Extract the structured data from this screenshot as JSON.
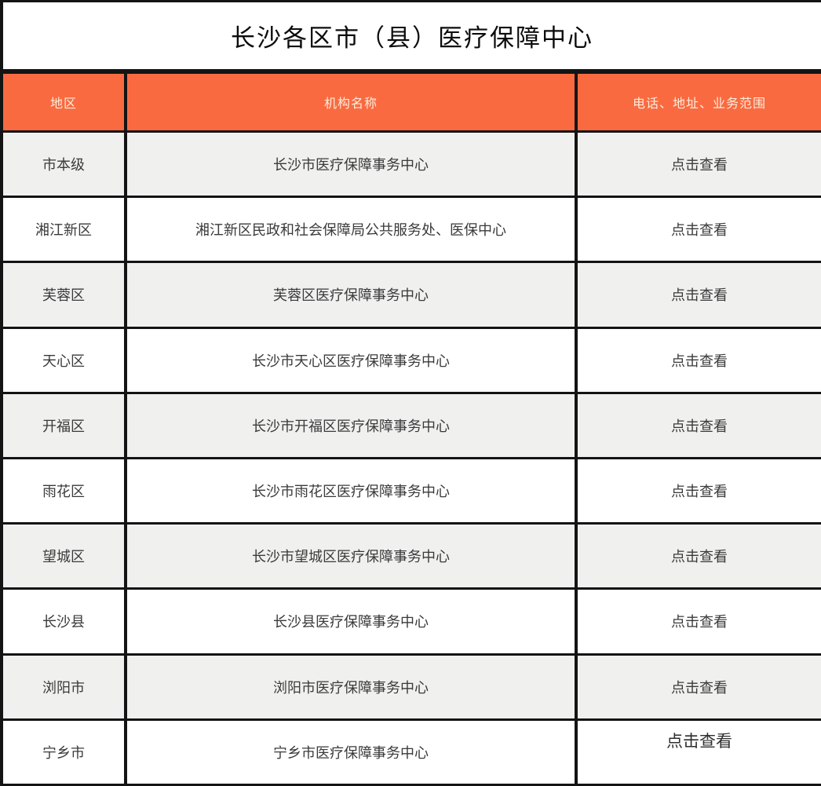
{
  "title": "长沙各区市（县）医疗保障中心",
  "colors": {
    "header_bg": "#FA6A40",
    "header_text": "#FBEDDC",
    "row_alt_bg": "#F0F0EF",
    "row_bg": "#FFFFFF",
    "border": "#141414",
    "body_text": "#3A3A3A"
  },
  "table": {
    "headers": [
      "地区",
      "机构名称",
      "电话、地址、业务范围"
    ],
    "rows": [
      {
        "region": "市本级",
        "org": "长沙市医疗保障事务中心",
        "action": "点击查看"
      },
      {
        "region": "湘江新区",
        "org": "湘江新区民政和社会保障局公共服务处、医保中心",
        "action": "点击查看"
      },
      {
        "region": "芙蓉区",
        "org": "芙蓉区医疗保障事务中心",
        "action": "点击查看"
      },
      {
        "region": "天心区",
        "org": "长沙市天心区医疗保障事务中心",
        "action": "点击查看"
      },
      {
        "region": "开福区",
        "org": "长沙市开福区医疗保障事务中心",
        "action": "点击查看"
      },
      {
        "region": "雨花区",
        "org": "长沙市雨花区医疗保障事务中心",
        "action": "点击查看"
      },
      {
        "region": "望城区",
        "org": "长沙市望城区医疗保障事务中心",
        "action": "点击查看"
      },
      {
        "region": "长沙县",
        "org": "长沙县医疗保障事务中心",
        "action": "点击查看"
      },
      {
        "region": "浏阳市",
        "org": "浏阳市医疗保障事务中心",
        "action": "点击查看"
      },
      {
        "region": "宁乡市",
        "org": "宁乡市医疗保障事务中心",
        "action": "点击查看"
      }
    ]
  }
}
